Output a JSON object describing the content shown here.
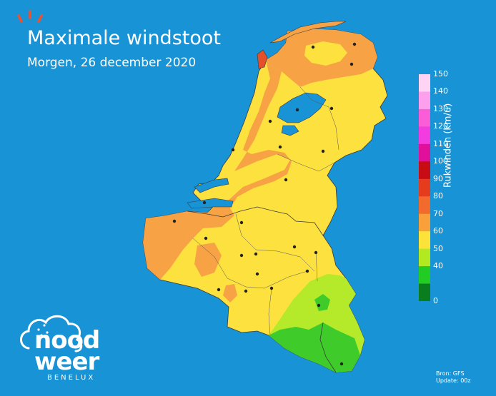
{
  "title": "Maximale windstoot",
  "subtitle": "Morgen, 26 december 2020",
  "legend": {
    "title": "Rukwinden (km/u)",
    "ticks": [
      "150",
      "140",
      "130",
      "120",
      "110",
      "100",
      "90",
      "80",
      "70",
      "60",
      "50",
      "40",
      "0"
    ],
    "colors": [
      "#fed4f4",
      "#fca0ee",
      "#fb5cd8",
      "#f23ce0",
      "#e0109c",
      "#c80c14",
      "#e43c1c",
      "#f26a2c",
      "#f9a03a",
      "#fde23a",
      "#b2ea22",
      "#22cc22",
      "#0a7e1e"
    ]
  },
  "source": {
    "line1": "Bron: GFS",
    "line2": "Update: 00z"
  },
  "logo": {
    "line1": "nood",
    "line2": "weer",
    "line3": "BENELUX"
  },
  "colors": {
    "sea": "#1893d6",
    "zone_80": "#f7a245",
    "zone_70": "#fde13f",
    "zone_60": "#b4ea29",
    "zone_50": "#3fcb2a"
  }
}
